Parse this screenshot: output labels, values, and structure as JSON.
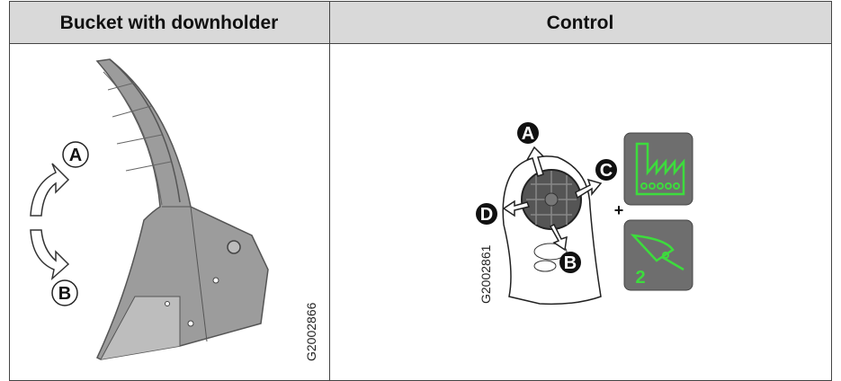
{
  "table": {
    "headers": [
      "Bucket with downholder",
      "Control"
    ],
    "left_image": {
      "labels": [
        "A",
        "B"
      ],
      "code": "G2002866"
    },
    "right_image": {
      "labels": [
        "A",
        "B",
        "C",
        "D"
      ],
      "code": "G2002861",
      "plus": "+",
      "function_number": "2"
    }
  }
}
